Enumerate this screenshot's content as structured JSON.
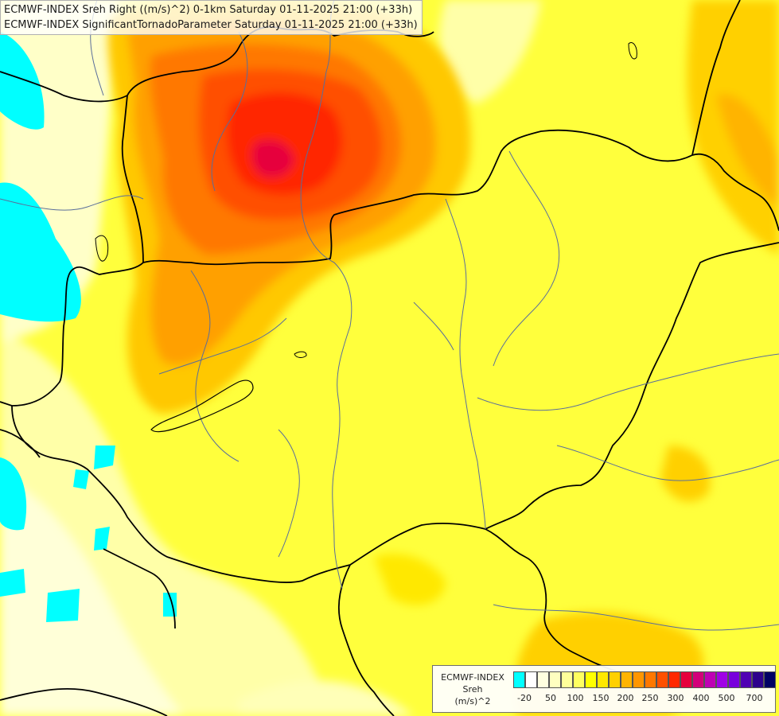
{
  "title": {
    "line1": "ECMWF-INDEX Sreh Right ((m/s)^2) 0-1km Saturday 01-11-2025 21:00 (+33h)",
    "line2": "ECMWF-INDEX SignificantTornadoParameter Saturday 01-11-2025 21:00 (+33h)"
  },
  "legend": {
    "model": "ECMWF-INDEX",
    "parameter": "Sreh",
    "unit": "(m/s)^2",
    "colors": [
      "#00ffff",
      "#ffffff",
      "#ffffe0",
      "#ffffc0",
      "#ffff9a",
      "#ffff60",
      "#ffff00",
      "#ffe800",
      "#ffd000",
      "#ffb400",
      "#ff9600",
      "#ff7800",
      "#ff5000",
      "#ff2800",
      "#e6003c",
      "#d2007a",
      "#be00b4",
      "#a000e6",
      "#7800dc",
      "#5000b4",
      "#2d008c",
      "#000064"
    ],
    "ticks": [
      "-20",
      "50",
      "100",
      "150",
      "200",
      "250",
      "300",
      "400",
      "500",
      "700"
    ]
  },
  "colors": {
    "background_yellow": "#ffff3c",
    "border": "#000000",
    "river": "#5a6e9a"
  }
}
